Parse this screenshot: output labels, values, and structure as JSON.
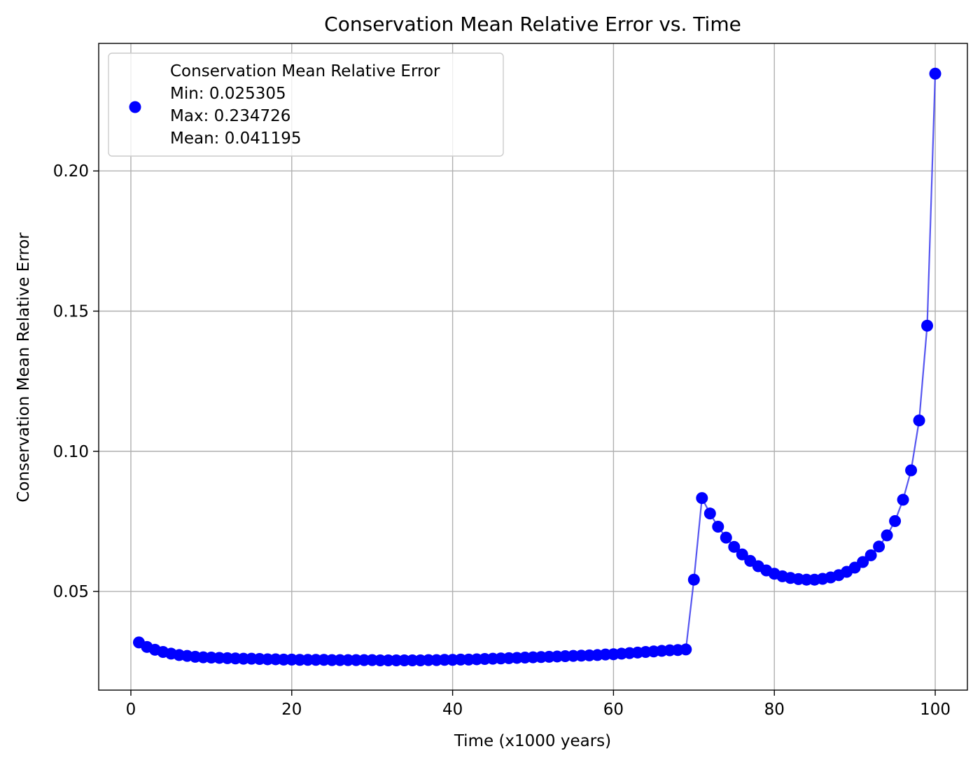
{
  "chart_data": {
    "type": "line",
    "title": "Conservation Mean Relative Error vs. Time",
    "xlabel": "Time (x1000 years)",
    "ylabel": "Conservation Mean Relative Error",
    "xlim": [
      -4,
      104
    ],
    "ylim": [
      0.0148,
      0.2455
    ],
    "xticks": [
      0,
      20,
      40,
      60,
      80,
      100
    ],
    "xtick_labels": [
      "0",
      "20",
      "40",
      "60",
      "80",
      "100"
    ],
    "yticks": [
      0.05,
      0.1,
      0.15,
      0.2
    ],
    "ytick_labels": [
      "0.05",
      "0.10",
      "0.15",
      "0.20"
    ],
    "grid": true,
    "legend_position": "top-left",
    "legend_lines": [
      "Conservation Mean Relative Error",
      "Min: 0.025305",
      "Max: 0.234726",
      "Mean: 0.041195"
    ],
    "colors": {
      "marker": "#0000ff",
      "line": "#4444ee",
      "grid": "#b0b0b0"
    },
    "series": [
      {
        "name": "Conservation Mean Relative Error",
        "x": [
          1,
          2,
          3,
          4,
          5,
          6,
          7,
          8,
          9,
          10,
          11,
          12,
          13,
          14,
          15,
          16,
          17,
          18,
          19,
          20,
          21,
          22,
          23,
          24,
          25,
          26,
          27,
          28,
          29,
          30,
          31,
          32,
          33,
          34,
          35,
          36,
          37,
          38,
          39,
          40,
          41,
          42,
          43,
          44,
          45,
          46,
          47,
          48,
          49,
          50,
          51,
          52,
          53,
          54,
          55,
          56,
          57,
          58,
          59,
          60,
          61,
          62,
          63,
          64,
          65,
          66,
          67,
          68,
          69,
          70,
          71,
          72,
          73,
          74,
          75,
          76,
          77,
          78,
          79,
          80,
          81,
          82,
          83,
          84,
          85,
          86,
          87,
          88,
          89,
          90,
          91,
          92,
          93,
          94,
          95,
          96,
          97,
          98,
          99,
          100
        ],
        "y": [
          0.0318,
          0.0302,
          0.0292,
          0.0284,
          0.0278,
          0.0273,
          0.027,
          0.0267,
          0.0265,
          0.0264,
          0.0263,
          0.0262,
          0.0261,
          0.026,
          0.026,
          0.0259,
          0.0258,
          0.0258,
          0.0257,
          0.0257,
          0.0256,
          0.0256,
          0.0256,
          0.0256,
          0.0255,
          0.0255,
          0.0255,
          0.0255,
          0.0255,
          0.0255,
          0.0254,
          0.0254,
          0.0254,
          0.0254,
          0.0254,
          0.0254,
          0.0255,
          0.0255,
          0.0256,
          0.0256,
          0.0257,
          0.0257,
          0.0258,
          0.0259,
          0.026,
          0.0261,
          0.0262,
          0.0263,
          0.0264,
          0.0265,
          0.0266,
          0.0267,
          0.0268,
          0.0269,
          0.027,
          0.0271,
          0.0272,
          0.0273,
          0.0275,
          0.0276,
          0.0278,
          0.028,
          0.0282,
          0.0284,
          0.0286,
          0.0288,
          0.029,
          0.0291,
          0.0293,
          0.0542,
          0.0833,
          0.0778,
          0.0731,
          0.0692,
          0.0659,
          0.0632,
          0.0609,
          0.059,
          0.0575,
          0.0563,
          0.0554,
          0.0548,
          0.0544,
          0.0542,
          0.0542,
          0.0545,
          0.055,
          0.0558,
          0.057,
          0.0585,
          0.0605,
          0.0629,
          0.066,
          0.07,
          0.0751,
          0.0827,
          0.0932,
          0.111,
          0.1448,
          0.2347
        ]
      }
    ]
  }
}
